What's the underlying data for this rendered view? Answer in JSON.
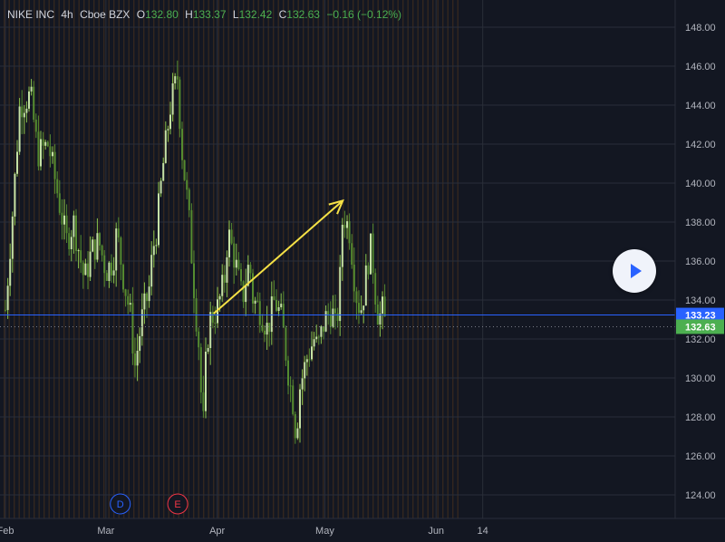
{
  "legend": {
    "symbol": "NIKE INC",
    "interval": "4h",
    "exchange": "Cboe BZX",
    "open_label": "O",
    "open": "132.80",
    "high_label": "H",
    "high": "133.37",
    "low_label": "L",
    "low": "132.42",
    "close_label": "C",
    "close": "132.63",
    "change": "−0.16 (−0.12%)"
  },
  "events": [
    {
      "label": "D",
      "color": "#2962ff",
      "date_x": "Mar 5"
    },
    {
      "label": "E",
      "color": "#f23645",
      "date_x": "Mar 21"
    }
  ],
  "price_tags": [
    {
      "value": "133.23",
      "color": "#2962ff",
      "price": 133.23
    },
    {
      "value": "132.63",
      "color": "#4caf50",
      "price": 132.63
    }
  ],
  "colors": {
    "background": "#131722",
    "grid": "#2a2e39",
    "candle_up": "#8bc34a",
    "candle_down": "#558b2f",
    "session_stripe": "#3a2a1e",
    "arrow": "#f5e146",
    "blue_line": "#2962ff",
    "axis_text": "#b2b5be"
  },
  "icons": {
    "play": "play-icon"
  },
  "chart_data": {
    "type": "candlestick",
    "x_ticks": [
      "Feb",
      "Mar",
      "Apr",
      "May",
      "Jun",
      "14"
    ],
    "y_ticks": [
      "148.00",
      "146.00",
      "144.00",
      "142.00",
      "140.00",
      "138.00",
      "136.00",
      "134.00",
      "132.00",
      "130.00",
      "128.00",
      "126.00",
      "124.00"
    ],
    "ylim": [
      123,
      149
    ],
    "grid": true,
    "horizontal_line": 133.23,
    "last_price": 132.63,
    "arrow": {
      "from": {
        "date": "Mar 31",
        "price": 133.3
      },
      "to": {
        "date": "May 6",
        "price": 139.1
      }
    },
    "close_path": [
      [
        "Feb 1",
        133.5
      ],
      [
        "Feb 3",
        138.5
      ],
      [
        "Feb 5",
        144.0
      ],
      [
        "Feb 8",
        144.5
      ],
      [
        "Feb 10",
        141.5
      ],
      [
        "Feb 13",
        142.0
      ],
      [
        "Feb 16",
        139.0
      ],
      [
        "Feb 18",
        137.0
      ],
      [
        "Feb 20",
        138.0
      ],
      [
        "Feb 23",
        135.0
      ],
      [
        "Feb 25",
        136.5
      ],
      [
        "Feb 27",
        137.0
      ],
      [
        "Mar 1",
        135.5
      ],
      [
        "Mar 3",
        136.0
      ],
      [
        "Mar 4",
        137.5
      ],
      [
        "Mar 6",
        135.0
      ],
      [
        "Mar 8",
        133.0
      ],
      [
        "Mar 9",
        130.5
      ],
      [
        "Mar 11",
        133.0
      ],
      [
        "Mar 13",
        134.5
      ],
      [
        "Mar 14",
        136.5
      ],
      [
        "Mar 15",
        137.5
      ],
      [
        "Mar 17",
        141.0
      ],
      [
        "Mar 19",
        144.0
      ],
      [
        "Mar 21",
        145.5
      ],
      [
        "Mar 22",
        142.0
      ],
      [
        "Mar 24",
        138.5
      ],
      [
        "Mar 25",
        136.0
      ],
      [
        "Mar 26",
        133.5
      ],
      [
        "Mar 27",
        131.5
      ],
      [
        "Mar 28",
        127.0
      ],
      [
        "Mar 29",
        131.5
      ],
      [
        "Mar 30",
        133.0
      ],
      [
        "Apr 1",
        133.5
      ],
      [
        "Apr 3",
        135.0
      ],
      [
        "Apr 4",
        137.5
      ],
      [
        "Apr 6",
        136.0
      ],
      [
        "Apr 8",
        134.0
      ],
      [
        "Apr 10",
        136.0
      ],
      [
        "Apr 11",
        134.0
      ],
      [
        "Apr 13",
        133.5
      ],
      [
        "Apr 15",
        132.5
      ],
      [
        "Apr 17",
        134.0
      ],
      [
        "Apr 19",
        133.0
      ],
      [
        "Apr 21",
        130.0
      ],
      [
        "Apr 22",
        129.0
      ],
      [
        "Apr 23",
        127.0
      ],
      [
        "Apr 24",
        129.5
      ],
      [
        "Apr 26",
        131.0
      ],
      [
        "Apr 28",
        132.0
      ],
      [
        "Apr 29",
        131.5
      ],
      [
        "May 1",
        133.0
      ],
      [
        "May 3",
        133.5
      ],
      [
        "May 4",
        132.5
      ],
      [
        "May 5",
        134.0
      ],
      [
        "May 6",
        138.5
      ],
      [
        "May 8",
        137.5
      ],
      [
        "May 9",
        135.5
      ],
      [
        "May 10",
        134.0
      ],
      [
        "May 11",
        133.5
      ],
      [
        "May 12",
        134.5
      ],
      [
        "May 13",
        136.0
      ],
      [
        "May 14",
        136.8
      ],
      [
        "May 15",
        134.5
      ],
      [
        "May 16",
        133.0
      ],
      [
        "May 17",
        133.5
      ],
      [
        "May 18",
        132.63
      ]
    ]
  }
}
